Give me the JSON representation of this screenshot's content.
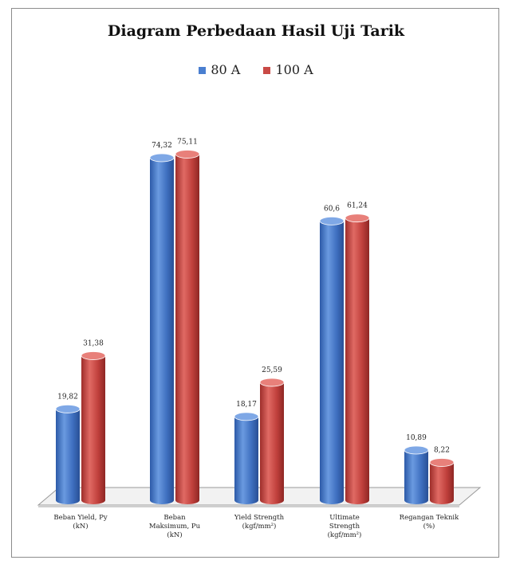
{
  "chart_data": {
    "type": "bar",
    "title": "Diagram Perbedaan Hasil Uji Tarik",
    "categories": [
      [
        "Beban Yield, Py",
        "(kN)"
      ],
      [
        "Beban",
        "Maksimum, Pu",
        "(kN)"
      ],
      [
        "Yield Strength",
        "(kgf/mm²)"
      ],
      [
        "Ultimate",
        "Strength",
        "(kgf/mm²)"
      ],
      [
        "Regangan Teknik",
        "(%)"
      ]
    ],
    "series": [
      {
        "name": "80 A",
        "color": "#4a7fd0",
        "values": [
          19.82,
          74.32,
          18.17,
          60.6,
          10.89
        ],
        "labels": [
          "19,82",
          "74,32",
          "18,17",
          "60,6",
          "10,89"
        ]
      },
      {
        "name": "100 A",
        "color": "#c94a46",
        "values": [
          31.38,
          75.11,
          25.59,
          61.24,
          8.22
        ],
        "labels": [
          "31,38",
          "75,11",
          "25,59",
          "61,24",
          "8,22"
        ]
      }
    ],
    "ylim": [
      0,
      80
    ],
    "grid": false,
    "legend": "top-center"
  }
}
